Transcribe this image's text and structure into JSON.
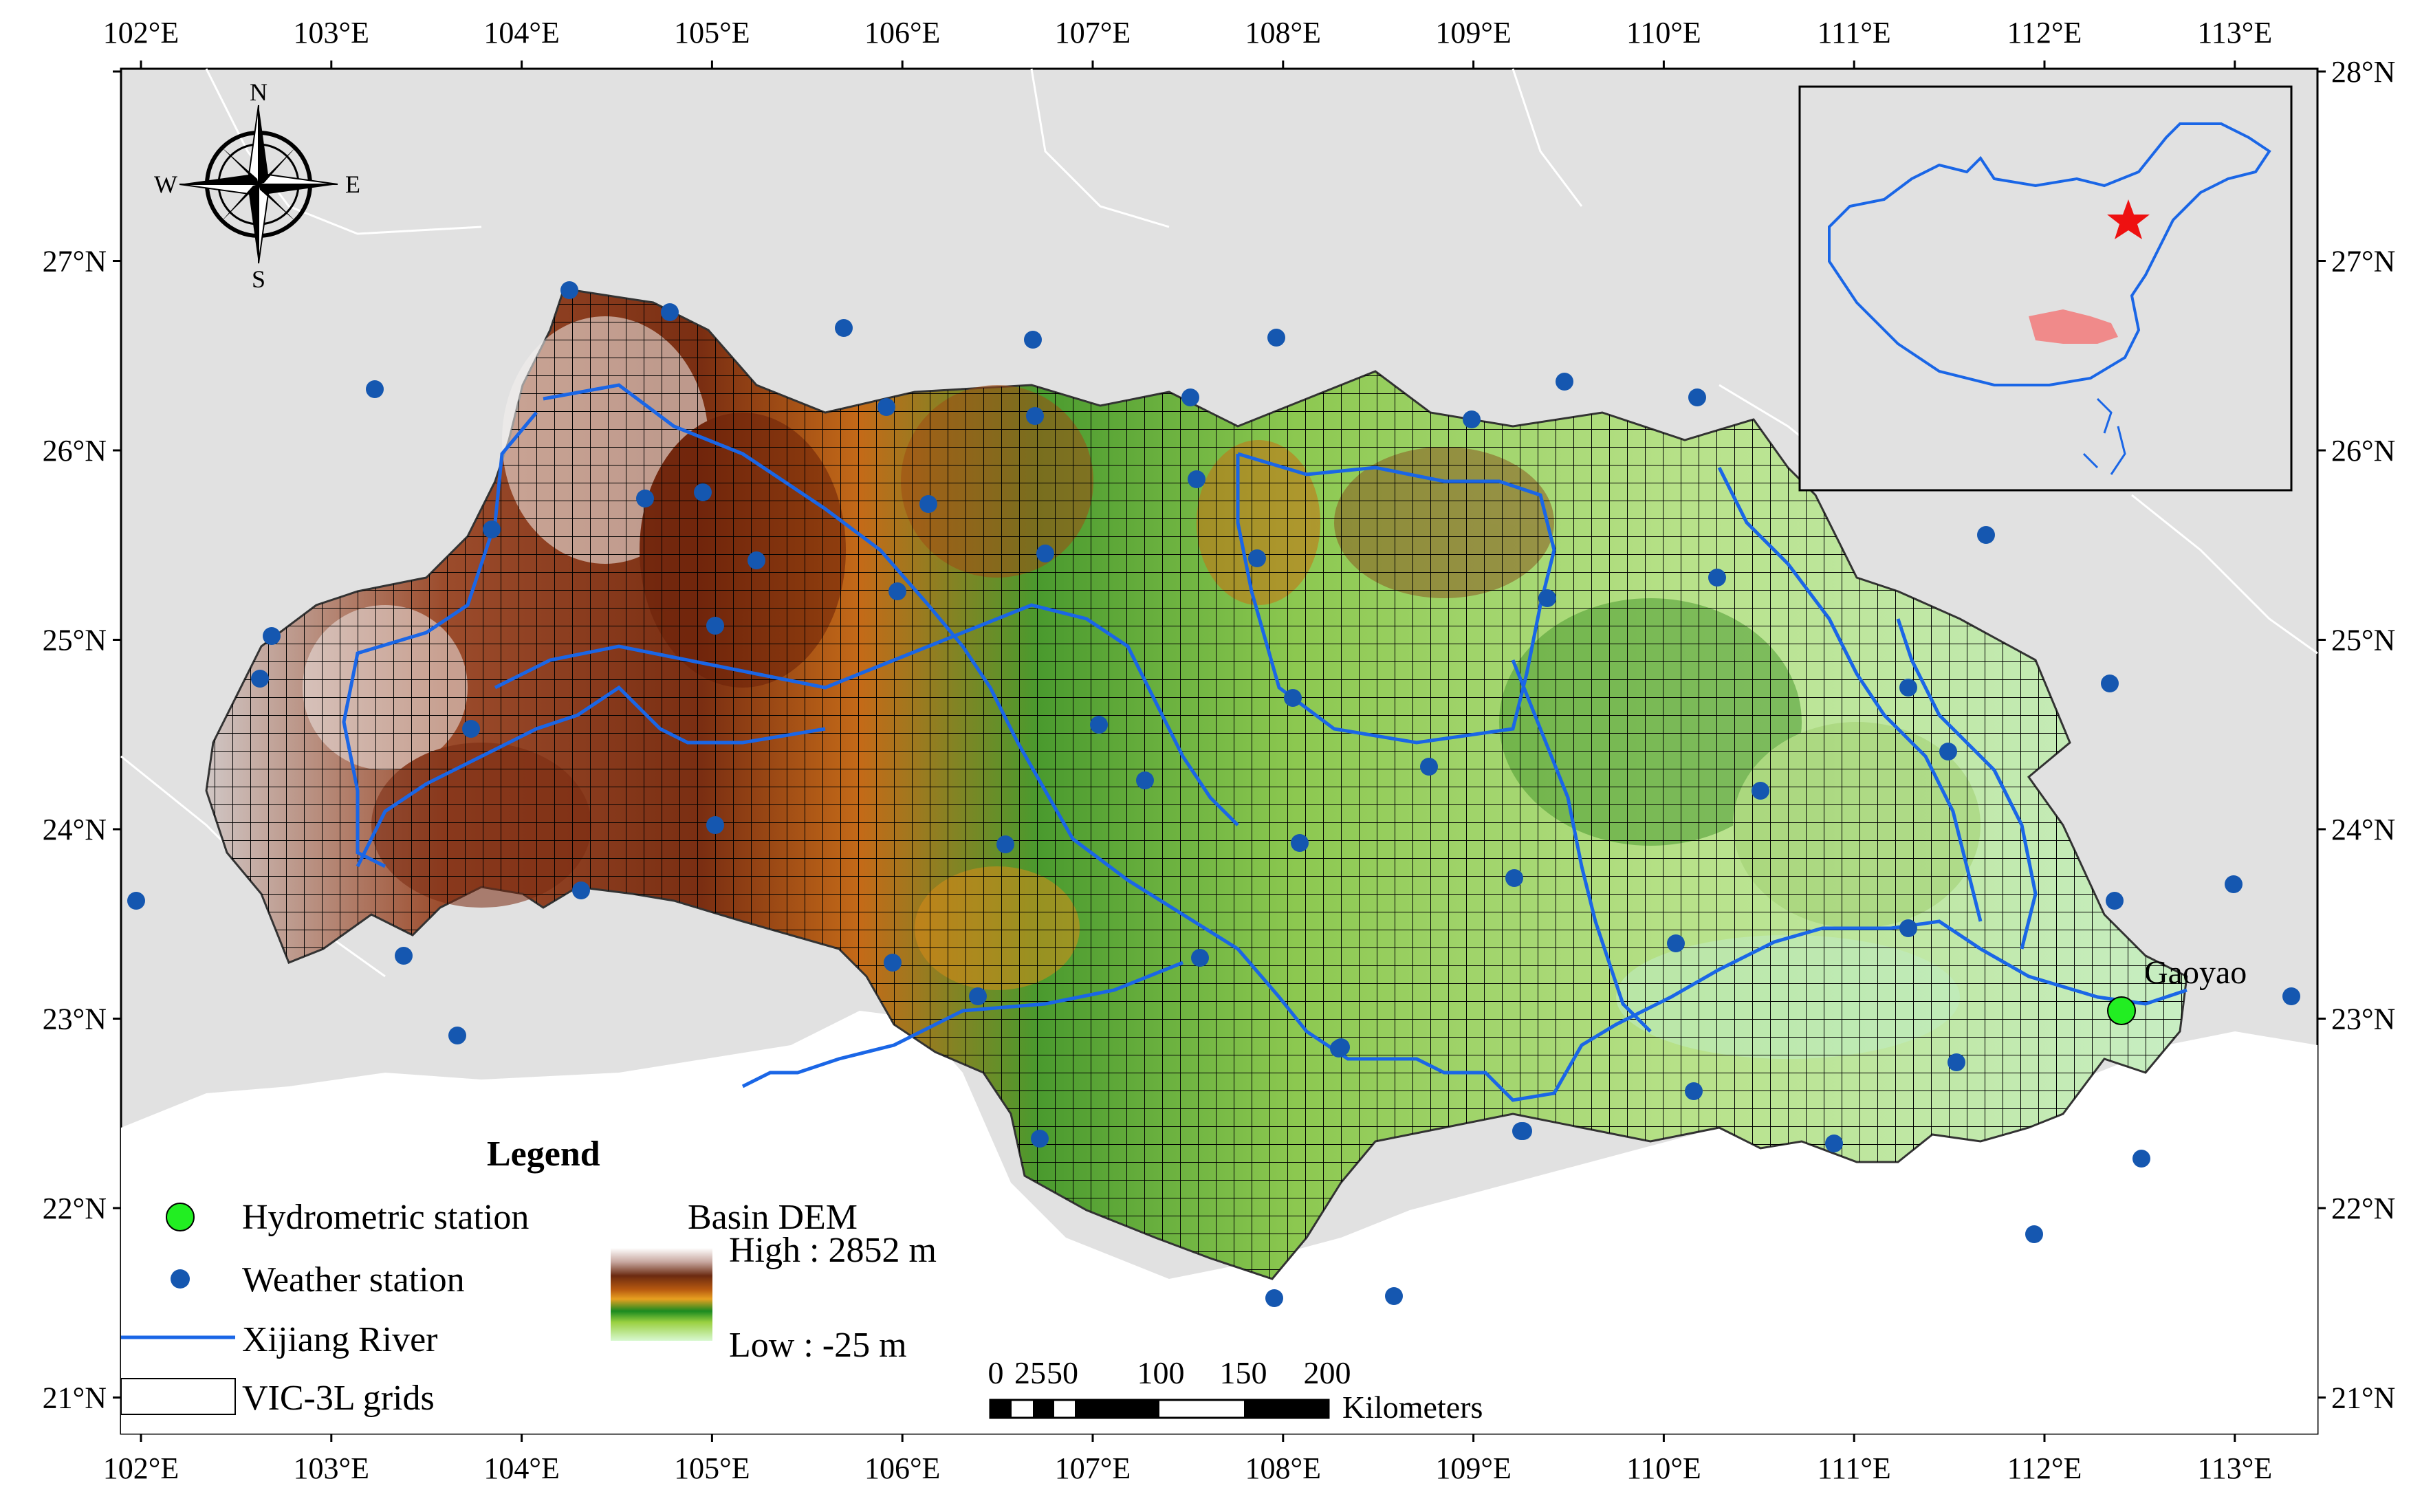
{
  "map": {
    "lon_ticks": [
      "102°E",
      "103°E",
      "104°E",
      "105°E",
      "106°E",
      "107°E",
      "108°E",
      "109°E",
      "110°E",
      "111°E",
      "112°E",
      "113°E"
    ],
    "lat_ticks": [
      "28°N",
      "27°N",
      "26°N",
      "25°N",
      "24°N",
      "23°N",
      "22°N",
      "21°N"
    ],
    "compass": {
      "n": "N",
      "s": "S",
      "e": "E",
      "w": "W"
    },
    "hydro_station_label": "Gaoyao",
    "colors": {
      "background_land": "#e1e1e1",
      "river": "#1a66e6",
      "weather_station": "#1557b0",
      "hydro_station": "#22ee22",
      "inset_star": "#ee1111",
      "inset_basin": "#f08a8a"
    }
  },
  "legend": {
    "title": "Legend",
    "items": {
      "hydro": "Hydrometric station",
      "weather": "Weather station",
      "river": "Xijiang River",
      "grids": "VIC-3L grids"
    },
    "dem_title": "Basin DEM",
    "dem_high": "High : 2852 m",
    "dem_low": "Low : -25 m"
  },
  "scale_bar": {
    "labels": [
      "0",
      "25",
      "50",
      "100",
      "150",
      "200"
    ],
    "unit": "Kilometers"
  }
}
